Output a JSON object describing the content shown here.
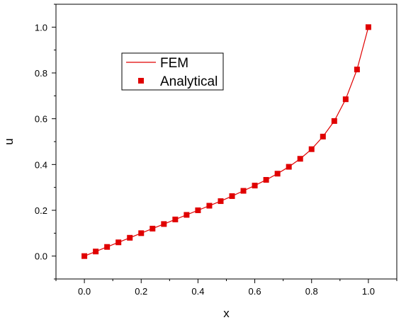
{
  "chart_data": {
    "type": "line",
    "title": "",
    "xlabel": "x",
    "ylabel": "u",
    "xlim": [
      -0.1,
      1.1
    ],
    "ylim": [
      -0.1,
      1.1
    ],
    "xticks": [
      "0.0",
      "0.2",
      "0.4",
      "0.6",
      "0.8",
      "1.0"
    ],
    "yticks": [
      "0.0",
      "0.2",
      "0.4",
      "0.6",
      "0.8",
      "1.0"
    ],
    "grid": false,
    "legend_position": "upper-left",
    "colors": {
      "series": "#e00000",
      "axis": "#000000"
    },
    "series": [
      {
        "name": "FEM",
        "style": "line",
        "x": [
          0.0,
          0.04,
          0.08,
          0.12,
          0.16,
          0.2,
          0.24,
          0.28,
          0.32,
          0.36,
          0.4,
          0.44,
          0.48,
          0.52,
          0.56,
          0.6,
          0.64,
          0.68,
          0.72,
          0.76,
          0.8,
          0.84,
          0.88,
          0.92,
          0.96,
          1.0
        ],
        "y": [
          0.0,
          0.02,
          0.04,
          0.06,
          0.08,
          0.1,
          0.12,
          0.14,
          0.16,
          0.18,
          0.2,
          0.22,
          0.24,
          0.262,
          0.285,
          0.308,
          0.333,
          0.36,
          0.39,
          0.425,
          0.467,
          0.522,
          0.59,
          0.685,
          0.815,
          1.0
        ]
      },
      {
        "name": "Analytical",
        "style": "markers",
        "x": [
          0.0,
          0.04,
          0.08,
          0.12,
          0.16,
          0.2,
          0.24,
          0.28,
          0.32,
          0.36,
          0.4,
          0.44,
          0.48,
          0.52,
          0.56,
          0.6,
          0.64,
          0.68,
          0.72,
          0.76,
          0.8,
          0.84,
          0.88,
          0.92,
          0.96,
          1.0
        ],
        "y": [
          0.0,
          0.02,
          0.04,
          0.06,
          0.08,
          0.1,
          0.12,
          0.14,
          0.16,
          0.18,
          0.2,
          0.22,
          0.24,
          0.262,
          0.285,
          0.308,
          0.333,
          0.36,
          0.39,
          0.425,
          0.467,
          0.522,
          0.59,
          0.685,
          0.815,
          1.0
        ]
      }
    ]
  }
}
